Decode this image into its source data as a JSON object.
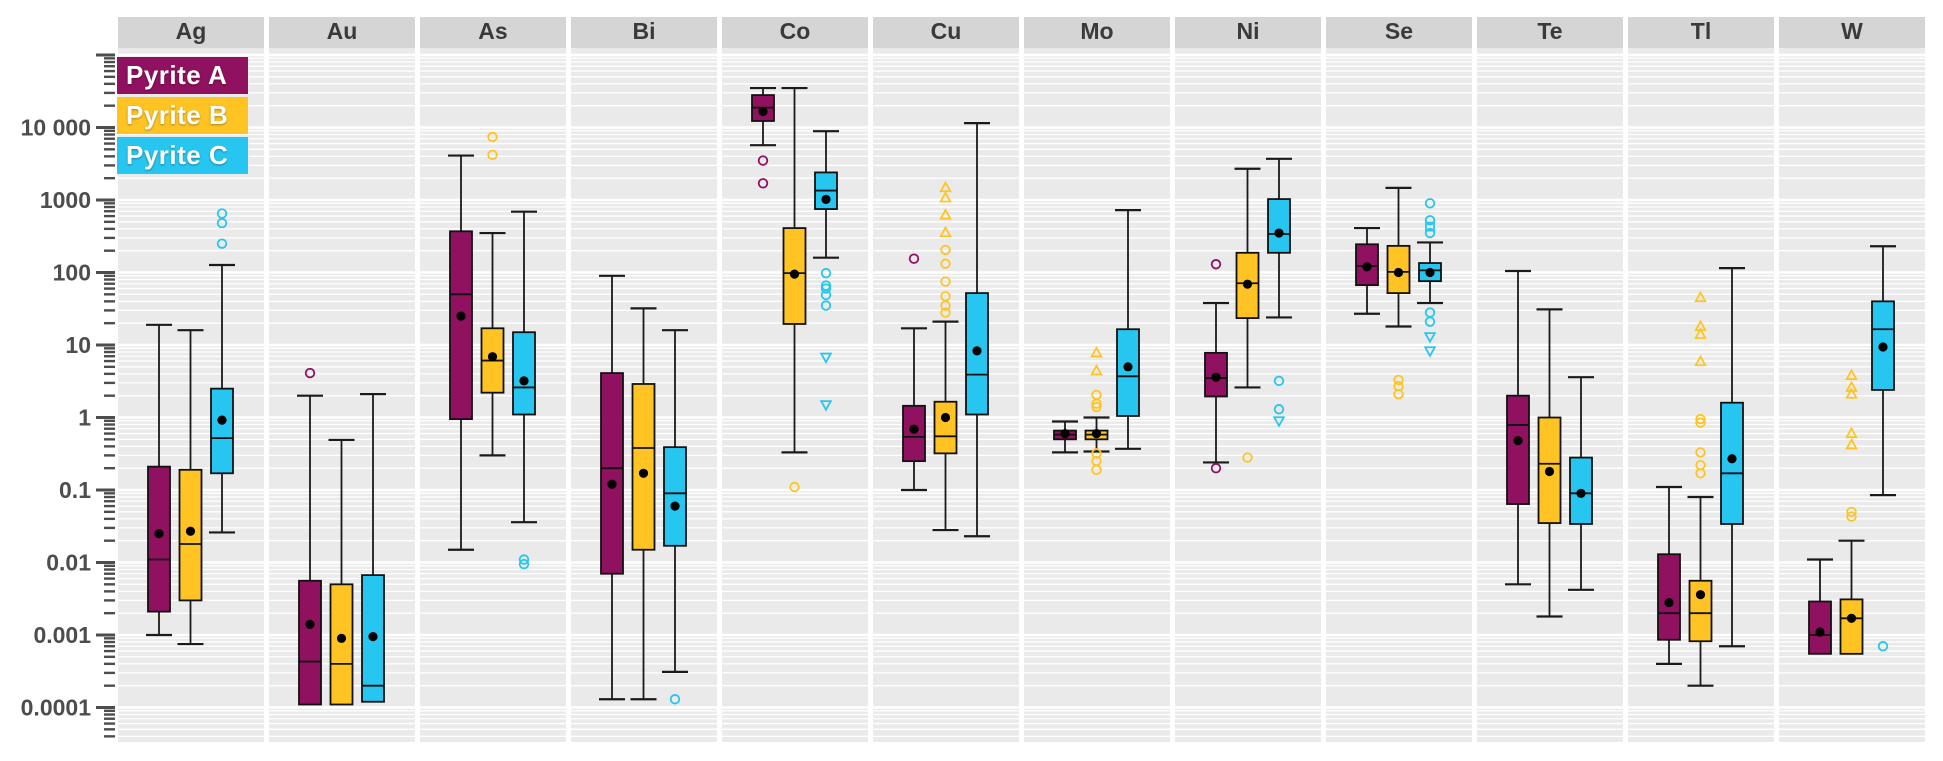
{
  "legend": {
    "items": [
      {
        "label": "Pyrite A",
        "color": "#90115F"
      },
      {
        "label": "Pyrite B",
        "color": "#FFC423"
      },
      {
        "label": "Pyrite C",
        "color": "#27C6F0"
      }
    ]
  },
  "axis": {
    "ticks": [
      {
        "label": "10 000",
        "value": 10000
      },
      {
        "label": "1000",
        "value": 1000
      },
      {
        "label": "100",
        "value": 100
      },
      {
        "label": "10",
        "value": 10
      },
      {
        "label": "1",
        "value": 1
      },
      {
        "label": "0.1",
        "value": 0.1
      },
      {
        "label": "0.01",
        "value": 0.01
      },
      {
        "label": "0.001",
        "value": 0.001
      },
      {
        "label": "0.0001",
        "value": 0.0001
      }
    ]
  },
  "chart_data": {
    "type": "boxplot",
    "y_scale": "log10",
    "ylim": [
      3.3e-05,
      125000
    ],
    "grid": "white-on-gray, log minor lines",
    "legend_position": "top-left overlay",
    "series_names": [
      "Pyrite A",
      "Pyrite B",
      "Pyrite C"
    ],
    "colors": {
      "Pyrite A": "#90115F",
      "Pyrite B": "#FFC423",
      "Pyrite C": "#27C6F0"
    },
    "panels": [
      {
        "element": "Ag",
        "boxes": [
          {
            "series": "Pyrite A",
            "low": 0.001,
            "q1": 0.0021,
            "median": 0.011,
            "mean": 0.025,
            "q3": 0.21,
            "high": 19,
            "outliers": []
          },
          {
            "series": "Pyrite B",
            "low": 0.00075,
            "q1": 0.003,
            "median": 0.018,
            "mean": 0.027,
            "q3": 0.19,
            "high": 16,
            "outliers": []
          },
          {
            "series": "Pyrite C",
            "low": 0.026,
            "q1": 0.17,
            "median": 0.52,
            "mean": 0.92,
            "q3": 2.5,
            "high": 127,
            "outliers": [
              {
                "shape": "circle",
                "value": 650
              },
              {
                "shape": "circle",
                "value": 480
              },
              {
                "shape": "circle",
                "value": 250
              }
            ]
          }
        ]
      },
      {
        "element": "Au",
        "boxes": [
          {
            "series": "Pyrite A",
            "low": 0.00011,
            "q1": 0.00011,
            "median": 0.00043,
            "mean": 0.0014,
            "q3": 0.0056,
            "high": 2.0,
            "outliers": [
              {
                "shape": "circle",
                "value": 4.1
              }
            ]
          },
          {
            "series": "Pyrite B",
            "low": 0.00011,
            "q1": 0.00011,
            "median": 0.0004,
            "mean": 0.0009,
            "q3": 0.005,
            "high": 0.49,
            "outliers": []
          },
          {
            "series": "Pyrite C",
            "low": 0.00012,
            "q1": 0.00012,
            "median": 0.0002,
            "mean": 0.00095,
            "q3": 0.0067,
            "high": 2.1,
            "outliers": []
          }
        ]
      },
      {
        "element": "As",
        "boxes": [
          {
            "series": "Pyrite A",
            "low": 0.015,
            "q1": 0.95,
            "median": 50,
            "mean": 25,
            "q3": 370,
            "high": 4100,
            "outliers": []
          },
          {
            "series": "Pyrite B",
            "low": 0.3,
            "q1": 2.2,
            "median": 6.1,
            "mean": 6.9,
            "q3": 17,
            "high": 350,
            "outliers": [
              {
                "shape": "circle",
                "value": 7400
              },
              {
                "shape": "circle",
                "value": 4200
              }
            ]
          },
          {
            "series": "Pyrite C",
            "low": 0.036,
            "q1": 1.1,
            "median": 2.6,
            "mean": 3.2,
            "q3": 15,
            "high": 690,
            "outliers": [
              {
                "shape": "circle",
                "value": 0.011
              },
              {
                "shape": "circle",
                "value": 0.0095
              }
            ]
          }
        ]
      },
      {
        "element": "Bi",
        "boxes": [
          {
            "series": "Pyrite A",
            "low": 0.00013,
            "q1": 0.007,
            "median": 0.2,
            "mean": 0.12,
            "q3": 4.1,
            "high": 90,
            "outliers": []
          },
          {
            "series": "Pyrite B",
            "low": 0.00013,
            "q1": 0.015,
            "median": 0.38,
            "mean": 0.17,
            "q3": 2.9,
            "high": 32,
            "outliers": []
          },
          {
            "series": "Pyrite C",
            "low": 0.00031,
            "q1": 0.017,
            "median": 0.09,
            "mean": 0.06,
            "q3": 0.39,
            "high": 16,
            "outliers": [
              {
                "shape": "circle",
                "value": 0.00013
              }
            ]
          }
        ]
      },
      {
        "element": "Co",
        "boxes": [
          {
            "series": "Pyrite A",
            "low": 5700,
            "q1": 12300,
            "median": 18800,
            "mean": 16600,
            "q3": 28000,
            "high": 35000,
            "outliers": [
              {
                "shape": "circle",
                "value": 3500
              },
              {
                "shape": "circle",
                "value": 1700
              }
            ]
          },
          {
            "series": "Pyrite B",
            "low": 0.33,
            "q1": 19.5,
            "median": 98,
            "mean": 95,
            "q3": 410,
            "high": 35000,
            "outliers": [
              {
                "shape": "circle",
                "value": 0.11
              }
            ]
          },
          {
            "series": "Pyrite C",
            "low": 160,
            "q1": 750,
            "median": 1350,
            "mean": 1020,
            "q3": 2400,
            "high": 8900,
            "outliers": [
              {
                "shape": "circle",
                "value": 98
              },
              {
                "shape": "circle",
                "value": 66
              },
              {
                "shape": "circle",
                "value": 60
              },
              {
                "shape": "circle",
                "value": 49
              },
              {
                "shape": "circle",
                "value": 35
              },
              {
                "shape": "triangle-down",
                "value": 6.8
              },
              {
                "shape": "triangle-down",
                "value": 1.5
              }
            ]
          }
        ]
      },
      {
        "element": "Cu",
        "boxes": [
          {
            "series": "Pyrite A",
            "low": 0.1,
            "q1": 0.25,
            "median": 0.54,
            "mean": 0.69,
            "q3": 1.45,
            "high": 17,
            "outliers": [
              {
                "shape": "circle",
                "value": 155
              }
            ]
          },
          {
            "series": "Pyrite B",
            "low": 0.028,
            "q1": 0.32,
            "median": 0.55,
            "mean": 1.0,
            "q3": 1.65,
            "high": 21,
            "outliers": [
              {
                "shape": "triangle-up",
                "value": 1480
              },
              {
                "shape": "triangle-up",
                "value": 1070
              },
              {
                "shape": "triangle-up",
                "value": 620
              },
              {
                "shape": "triangle-up",
                "value": 355
              },
              {
                "shape": "circle",
                "value": 205
              },
              {
                "shape": "circle",
                "value": 132
              },
              {
                "shape": "circle",
                "value": 75
              },
              {
                "shape": "circle",
                "value": 47
              },
              {
                "shape": "circle",
                "value": 35
              },
              {
                "shape": "circle",
                "value": 28
              }
            ]
          },
          {
            "series": "Pyrite C",
            "low": 0.023,
            "q1": 1.1,
            "median": 3.9,
            "mean": 8.3,
            "q3": 52,
            "high": 11500,
            "outliers": []
          }
        ]
      },
      {
        "element": "Mo",
        "boxes": [
          {
            "series": "Pyrite A",
            "low": 0.33,
            "q1": 0.5,
            "median": 0.58,
            "mean": 0.6,
            "q3": 0.66,
            "high": 0.88,
            "outliers": []
          },
          {
            "series": "Pyrite B",
            "low": 0.34,
            "q1": 0.5,
            "median": 0.58,
            "mean": 0.6,
            "q3": 0.66,
            "high": 1.0,
            "outliers": [
              {
                "shape": "triangle-up",
                "value": 7.8
              },
              {
                "shape": "triangle-up",
                "value": 4.4
              },
              {
                "shape": "circle",
                "value": 2.05
              },
              {
                "shape": "circle",
                "value": 1.55
              },
              {
                "shape": "circle",
                "value": 1.4
              },
              {
                "shape": "circle",
                "value": 0.32
              },
              {
                "shape": "circle",
                "value": 0.25
              },
              {
                "shape": "circle",
                "value": 0.19
              }
            ]
          },
          {
            "series": "Pyrite C",
            "low": 0.37,
            "q1": 1.05,
            "median": 3.7,
            "mean": 5.0,
            "q3": 16.5,
            "high": 725,
            "outliers": []
          }
        ]
      },
      {
        "element": "Ni",
        "boxes": [
          {
            "series": "Pyrite A",
            "low": 0.24,
            "q1": 1.95,
            "median": 3.5,
            "mean": 3.6,
            "q3": 7.8,
            "high": 38,
            "outliers": [
              {
                "shape": "circle",
                "value": 130
              },
              {
                "shape": "circle",
                "value": 0.2
              }
            ]
          },
          {
            "series": "Pyrite B",
            "low": 2.6,
            "q1": 23.5,
            "median": 71,
            "mean": 69,
            "q3": 187,
            "high": 2700,
            "outliers": [
              {
                "shape": "circle",
                "value": 0.28
              }
            ]
          },
          {
            "series": "Pyrite C",
            "low": 24,
            "q1": 187,
            "median": 340,
            "mean": 350,
            "q3": 1030,
            "high": 3700,
            "outliers": [
              {
                "shape": "circle",
                "value": 3.2
              },
              {
                "shape": "circle",
                "value": 1.3
              },
              {
                "shape": "triangle-down",
                "value": 0.9
              }
            ]
          }
        ]
      },
      {
        "element": "Se",
        "boxes": [
          {
            "series": "Pyrite A",
            "low": 27,
            "q1": 67,
            "median": 123,
            "mean": 120,
            "q3": 245,
            "high": 410,
            "outliers": []
          },
          {
            "series": "Pyrite B",
            "low": 18,
            "q1": 52,
            "median": 102,
            "mean": 100,
            "q3": 233,
            "high": 1470,
            "outliers": [
              {
                "shape": "circle",
                "value": 3.3
              },
              {
                "shape": "circle",
                "value": 2.7
              },
              {
                "shape": "circle",
                "value": 2.1
              }
            ]
          },
          {
            "series": "Pyrite C",
            "low": 38,
            "q1": 76,
            "median": 107,
            "mean": 100,
            "q3": 135,
            "high": 260,
            "outliers": [
              {
                "shape": "circle",
                "value": 900
              },
              {
                "shape": "circle",
                "value": 525
              },
              {
                "shape": "square",
                "value": 430
              },
              {
                "shape": "circle",
                "value": 350
              },
              {
                "shape": "circle",
                "value": 28
              },
              {
                "shape": "circle",
                "value": 21
              },
              {
                "shape": "triangle-down",
                "value": 13
              },
              {
                "shape": "triangle-down",
                "value": 8.3
              }
            ]
          }
        ]
      },
      {
        "element": "Te",
        "boxes": [
          {
            "series": "Pyrite A",
            "low": 0.005,
            "q1": 0.064,
            "median": 0.79,
            "mean": 0.48,
            "q3": 2.0,
            "high": 105,
            "outliers": []
          },
          {
            "series": "Pyrite B",
            "low": 0.0018,
            "q1": 0.035,
            "median": 0.23,
            "mean": 0.18,
            "q3": 1.0,
            "high": 31,
            "outliers": []
          },
          {
            "series": "Pyrite C",
            "low": 0.0042,
            "q1": 0.034,
            "median": 0.09,
            "mean": 0.09,
            "q3": 0.28,
            "high": 3.6,
            "outliers": []
          }
        ]
      },
      {
        "element": "Tl",
        "boxes": [
          {
            "series": "Pyrite A",
            "low": 0.0004,
            "q1": 0.00086,
            "median": 0.002,
            "mean": 0.0028,
            "q3": 0.013,
            "high": 0.11,
            "outliers": []
          },
          {
            "series": "Pyrite B",
            "low": 0.0002,
            "q1": 0.00082,
            "median": 0.002,
            "mean": 0.0036,
            "q3": 0.0056,
            "high": 0.08,
            "outliers": [
              {
                "shape": "triangle-up",
                "value": 45
              },
              {
                "shape": "triangle-up",
                "value": 18
              },
              {
                "shape": "triangle-up",
                "value": 14
              },
              {
                "shape": "triangle-up",
                "value": 5.9
              },
              {
                "shape": "circle",
                "value": 0.95
              },
              {
                "shape": "circle",
                "value": 0.85
              },
              {
                "shape": "circle",
                "value": 0.33
              },
              {
                "shape": "circle",
                "value": 0.22
              },
              {
                "shape": "circle",
                "value": 0.17
              }
            ]
          },
          {
            "series": "Pyrite C",
            "low": 0.0007,
            "q1": 0.034,
            "median": 0.17,
            "mean": 0.27,
            "q3": 1.6,
            "high": 115,
            "outliers": []
          }
        ]
      },
      {
        "element": "W",
        "boxes": [
          {
            "series": "Pyrite A",
            "low": 0.00055,
            "q1": 0.00055,
            "median": 0.001,
            "mean": 0.0011,
            "q3": 0.0029,
            "high": 0.011,
            "outliers": []
          },
          {
            "series": "Pyrite B",
            "low": 0.00055,
            "q1": 0.00055,
            "median": 0.0017,
            "mean": 0.0017,
            "q3": 0.0031,
            "high": 0.02,
            "outliers": [
              {
                "shape": "triangle-up",
                "value": 3.8
              },
              {
                "shape": "triangle-up",
                "value": 2.6
              },
              {
                "shape": "triangle-up",
                "value": 2.1
              },
              {
                "shape": "triangle-up",
                "value": 0.6
              },
              {
                "shape": "triangle-up",
                "value": 0.42
              },
              {
                "shape": "circle",
                "value": 0.05
              },
              {
                "shape": "circle",
                "value": 0.043
              }
            ]
          },
          {
            "series": "Pyrite C",
            "low": 0.085,
            "q1": 2.4,
            "median": 16.5,
            "mean": 9.4,
            "q3": 40,
            "high": 230,
            "outliers": [
              {
                "shape": "circle",
                "value": 0.0007
              }
            ]
          }
        ]
      }
    ]
  }
}
